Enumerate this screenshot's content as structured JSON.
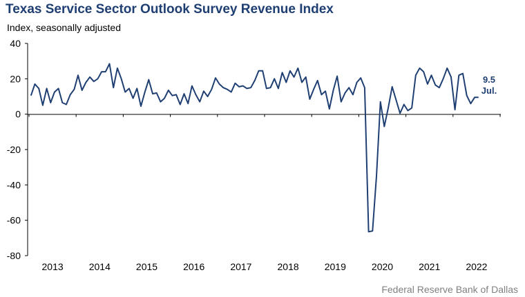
{
  "chart_data": {
    "type": "line",
    "title": "Texas Service Sector Outlook Survey Revenue Index",
    "subtitle": "Index, seasonally adjusted",
    "source": "Federal Reserve Bank of Dallas",
    "ylim": [
      -80,
      40
    ],
    "yticks": [
      40,
      20,
      0,
      -20,
      -40,
      -60,
      -80
    ],
    "year_labels": [
      "2013",
      "2014",
      "2015",
      "2016",
      "2017",
      "2018",
      "2019",
      "2020",
      "2021",
      "2022"
    ],
    "x_start": "2013-01",
    "series": [
      {
        "name": "Revenue Index",
        "color": "#1f3f73",
        "values": [
          10.5,
          17,
          14.5,
          5,
          14.5,
          6.5,
          12.5,
          14.5,
          6.5,
          5.5,
          11,
          14,
          22,
          13.5,
          18,
          21,
          18.5,
          20,
          24,
          24,
          28.5,
          15,
          26,
          20,
          12.5,
          14.5,
          9,
          14.5,
          4.5,
          12.5,
          19.5,
          11.5,
          12,
          7,
          9,
          13.5,
          10.5,
          11,
          5.5,
          11.5,
          6,
          16,
          11,
          7,
          13,
          10,
          14,
          20.5,
          17,
          15,
          14,
          12.5,
          17.5,
          15.5,
          16,
          14.5,
          15,
          19,
          24.5,
          24.5,
          14.5,
          15,
          20,
          14.5,
          23.5,
          18,
          24.5,
          21,
          26,
          18,
          21,
          8.5,
          14,
          19,
          11,
          13,
          3,
          13.5,
          21.5,
          7,
          12,
          15,
          11,
          18,
          20.5,
          15,
          -66.5,
          -66,
          -35,
          7,
          -7,
          3.5,
          15.5,
          8,
          0.5,
          5.5,
          2,
          3.5,
          22,
          26,
          24,
          17,
          22,
          16.5,
          15,
          20,
          26,
          21,
          2.5,
          22,
          23,
          10.5,
          6,
          9.5,
          9.5
        ]
      }
    ],
    "annotation": {
      "value": "9.5",
      "month": "Jul."
    }
  }
}
